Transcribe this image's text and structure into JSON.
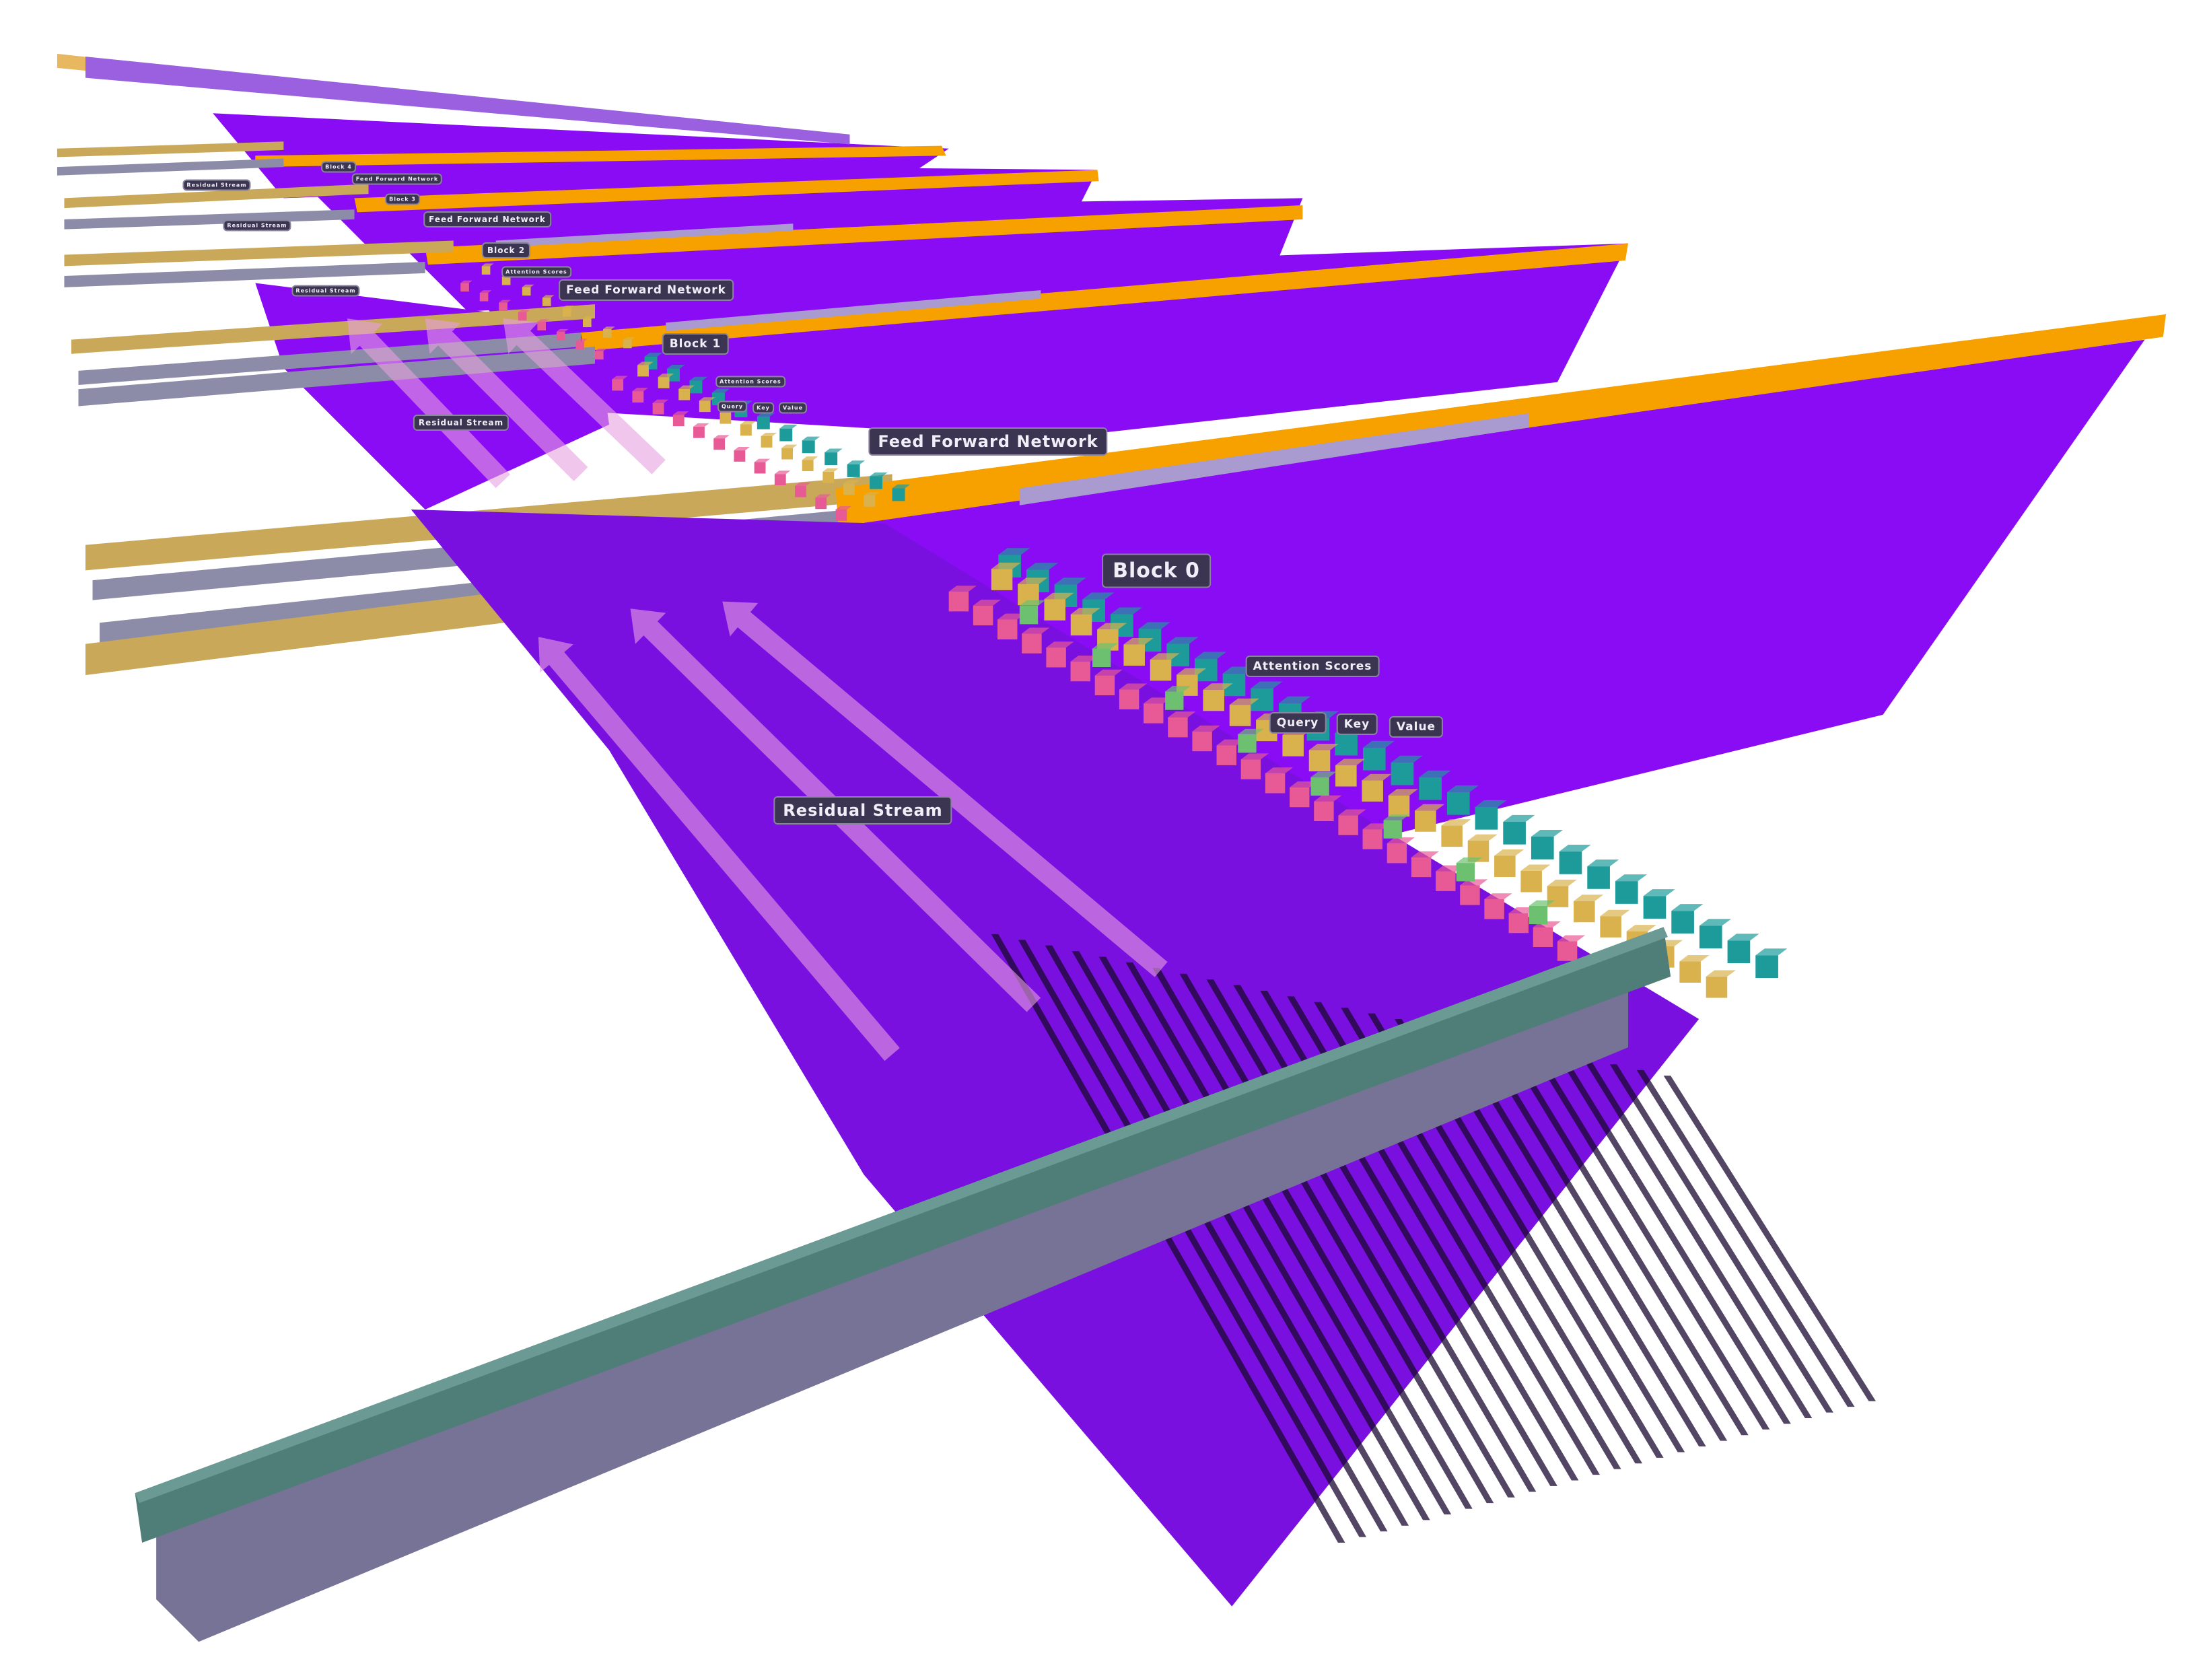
{
  "colors": {
    "ffn_plane": "#8a0cf5",
    "attention_sheet": "#7a10e0",
    "orange_bar": "#f6a100",
    "lavender_bar": "#a99ad0",
    "residual_teal": "#4f7d78",
    "residual_lavender": "#767396",
    "tan_bar": "#c9a85a",
    "gray_bar": "#8c8ca8",
    "query_cube": "#e85a95",
    "key_cube": "#d9b24e",
    "value_cube": "#1d9b9b",
    "score_cube": "#6cc070",
    "arrow": "#e6a0e0"
  },
  "labels": {
    "block0": "Block 0",
    "block1": "Block 1",
    "block2": "Block 2",
    "block3": "Block 3",
    "block4": "Block 4",
    "ffn": "Feed Forward Network",
    "residual": "Residual Stream",
    "attention_scores": "Attention Scores",
    "query": "Query",
    "key": "Key",
    "value": "Value"
  }
}
